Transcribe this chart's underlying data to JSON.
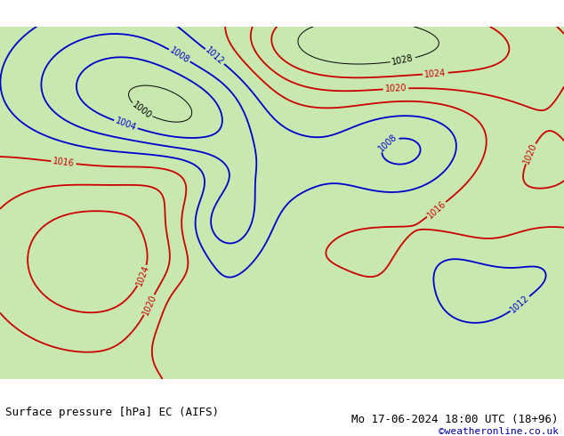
{
  "title_left": "Surface pressure [hPa] EC (AIFS)",
  "title_right": "Mo 17-06-2024 18:00 UTC (18+96)",
  "copyright": "©weatheronline.co.uk",
  "land_color": "#c8e8b0",
  "sea_color": "#dcdcdc",
  "contour_black_color": "#000000",
  "contour_red_color": "#cc0000",
  "contour_blue_color": "#0000cc",
  "label_fontsize": 7,
  "title_fontsize": 9,
  "copyright_fontsize": 8,
  "lon_min": -35,
  "lon_max": 45,
  "lat_min": 25,
  "lat_max": 75
}
